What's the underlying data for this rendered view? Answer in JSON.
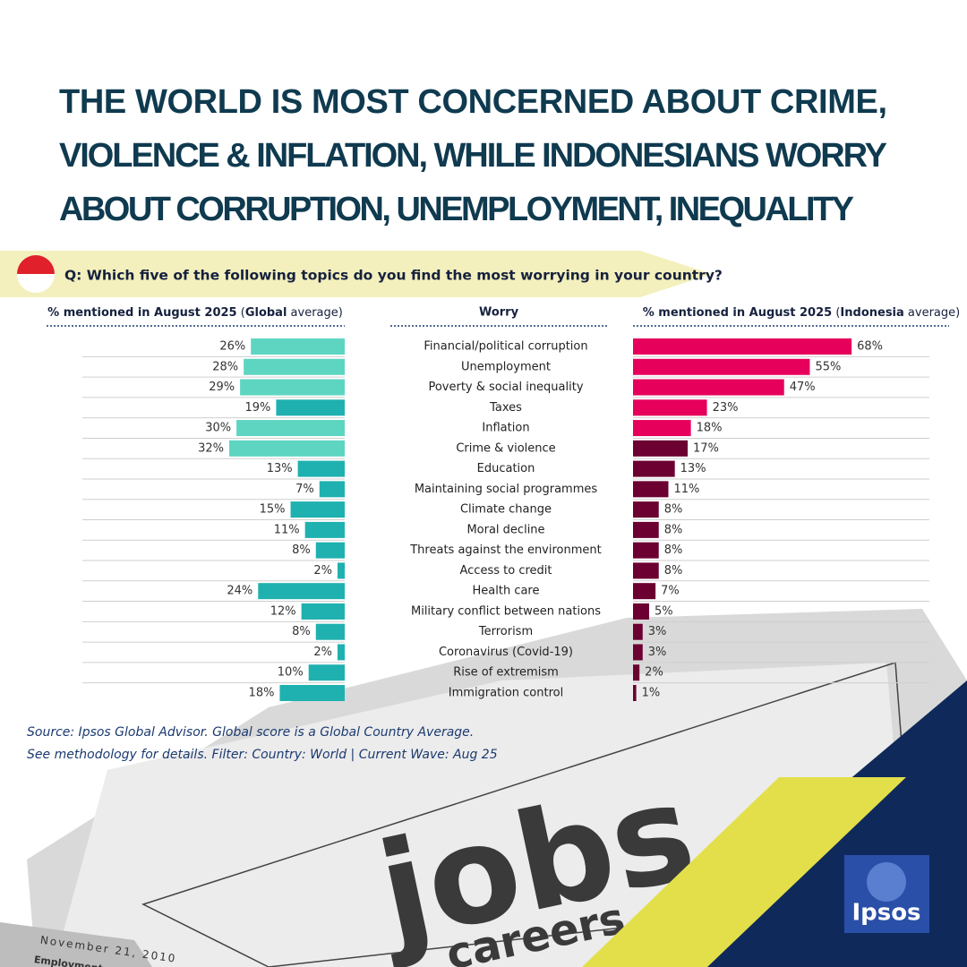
{
  "chart_data": {
    "type": "mirrored_bar",
    "title_lines": [
      "THE WORLD IS MOST CONCERNED ABOUT CRIME,",
      "VIOLENCE & INFLATION, WHILE INDONESIANS WORRY",
      "ABOUT CORRUPTION, UNEMPLOYMENT, INEQUALITY"
    ],
    "question": "Q: Which five of the following topics do you find the most worrying in your country?",
    "category_header": "Worry",
    "categories": [
      "Financial/political corruption",
      "Unemployment",
      "Poverty & social inequality",
      "Taxes",
      "Inflation",
      "Crime & violence",
      "Education",
      "Maintaining social programmes",
      "Climate change",
      "Moral decline",
      "Threats against the environment",
      "Access to credit",
      "Health care",
      "Military conflict between nations",
      "Terrorism",
      "Coronavirus (Covid-19)",
      "Rise of extremism",
      "Immigration control"
    ],
    "series": [
      {
        "header": [
          {
            "text": "% mentioned in August 2025",
            "bold": true
          },
          {
            "text": " (",
            "bold": false
          },
          {
            "text": "Global",
            "bold": true
          },
          {
            "text": " average)",
            "bold": false
          }
        ],
        "values": [
          26,
          28,
          29,
          19,
          30,
          32,
          13,
          7,
          15,
          11,
          8,
          2,
          24,
          12,
          8,
          2,
          10,
          18
        ],
        "value_labels": [
          "26%",
          "28%",
          "29%",
          "19%",
          "30%",
          "32%",
          "13%",
          "7%",
          "15%",
          "11%",
          "8%",
          "2%",
          "24%",
          "12%",
          "8%",
          "2%",
          "10%",
          "18%"
        ],
        "colors": [
          "#5dd5c1",
          "#5dd5c1",
          "#5dd5c1",
          "#1fb1af",
          "#5dd5c1",
          "#5dd5c1",
          "#1fb1af",
          "#1fb1af",
          "#1fb1af",
          "#1fb1af",
          "#1fb1af",
          "#1fb1af",
          "#1fb1af",
          "#1fb1af",
          "#1fb1af",
          "#1fb1af",
          "#1fb1af",
          "#1fb1af"
        ]
      },
      {
        "header": [
          {
            "text": "% mentioned in August 2025",
            "bold": true
          },
          {
            "text": " (",
            "bold": false
          },
          {
            "text": "Indonesia",
            "bold": true
          },
          {
            "text": " average)",
            "bold": false
          }
        ],
        "values": [
          68,
          55,
          47,
          23,
          18,
          17,
          13,
          11,
          8,
          8,
          8,
          8,
          7,
          5,
          3,
          3,
          2,
          1
        ],
        "value_labels": [
          "68%",
          "55%",
          "47%",
          "23%",
          "18%",
          "17%",
          "13%",
          "11%",
          "8%",
          "8%",
          "8%",
          "8%",
          "7%",
          "5%",
          "3%",
          "3%",
          "2%",
          "1%"
        ],
        "colors": [
          "#e6005c",
          "#e6005c",
          "#e6005c",
          "#e6005c",
          "#e6005c",
          "#6b0031",
          "#6b0031",
          "#6b0031",
          "#6b0031",
          "#6b0031",
          "#6b0031",
          "#6b0031",
          "#6b0031",
          "#6b0031",
          "#6b0031",
          "#6b0031",
          "#6b0031",
          "#6b0031"
        ]
      }
    ],
    "source_lines": [
      "Source: Ipsos Global Advisor. Global score is a Global Country Average.",
      "See methodology for details. Filter: Country: World | Current Wave: Aug 25"
    ],
    "logo": "Ipsos",
    "background_texts": [
      "jobs",
      "careers",
      "November 21, 2010",
      "Employment"
    ]
  }
}
